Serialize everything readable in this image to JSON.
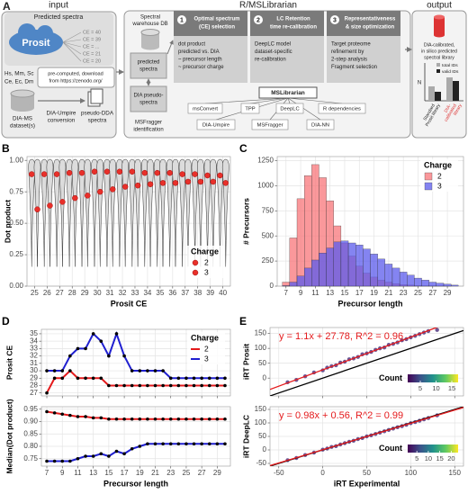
{
  "diagram": {
    "panel_label": "A",
    "input": {
      "title": "input",
      "predicted": "Predicted spectra",
      "prosit": "Prosit",
      "ce": [
        "CE = 40",
        "CE = 39",
        "CE = ...",
        "CE = 21",
        "CE = 20"
      ],
      "species": [
        "Hs, Mm, Sc",
        "Ce, Ec, Dm"
      ],
      "download": [
        "pre-computed, download",
        "from https://zenodo.org/"
      ],
      "dia": [
        "DIA-MS",
        "dataset(s)"
      ],
      "conversion": [
        "DIA-Umpire",
        "conversion"
      ],
      "pseudo": [
        "pseudo-DDA",
        "spectra"
      ]
    },
    "middle": {
      "title": "R/MSLibrarian",
      "warehouse": [
        "Spectral",
        "warehouse DB"
      ],
      "predicted_spectra": [
        "predicted",
        "spectra"
      ],
      "dia_pseudo": [
        "DIA pseudo-",
        "spectra"
      ],
      "msfragger": [
        "MSFragger",
        "identification"
      ],
      "steps": [
        {
          "number": "1",
          "title": [
            "Optimal spectrum",
            "(CE) selection"
          ],
          "text": [
            "dot product",
            "predicted vs. DIA",
            "~ precursor length",
            "~ precursor charge"
          ]
        },
        {
          "number": "2",
          "title": [
            "LC Retention",
            "time re-calibration"
          ],
          "text": [
            "DeepLC model",
            "dataset-specific",
            "re-calibration"
          ]
        },
        {
          "number": "3",
          "title": [
            "Representativeness",
            "& size optimization"
          ],
          "text": [
            "Target proteome",
            "refinement by",
            "2-step analysis",
            "Fragment selection"
          ]
        }
      ],
      "package": "MSLibrarian",
      "dependencies": [
        "msConvert",
        "TPP",
        "DeepLC",
        "R dependencies",
        "DIA-Umpire",
        "MSFragger",
        "DIA-NN"
      ]
    },
    "output": {
      "title": "output",
      "text": [
        "DIA-calibrated,",
        "in silico predicted",
        "spectral library"
      ],
      "axis": "N",
      "legend": [
        "total IDs",
        "valid IDs"
      ],
      "standard": [
        "Standard",
        "Prosit library"
      ],
      "calibrated": [
        "DIA-",
        "calibrated",
        "library"
      ]
    }
  },
  "chart_data": [
    {
      "type": "violin",
      "panel_label": "B",
      "xlabel": "Prosit CE",
      "ylabel": "Dot product",
      "x": [
        25,
        26,
        27,
        28,
        29,
        30,
        31,
        32,
        33,
        34,
        35,
        36,
        37,
        38,
        39,
        40
      ],
      "xlim": [
        24.4,
        40.6
      ],
      "xticks": [
        25,
        26,
        27,
        28,
        29,
        30,
        31,
        32,
        33,
        34,
        35,
        36,
        37,
        38,
        39,
        40
      ],
      "ylim": [
        0,
        1.03
      ],
      "yticks": [
        {
          "value": 0,
          "label": "0.00"
        },
        {
          "value": 0.25,
          "label": "0.25"
        },
        {
          "value": 0.5,
          "label": "0.50"
        },
        {
          "value": 0.75,
          "label": "0.75"
        },
        {
          "value": 1,
          "label": "1.00"
        }
      ],
      "grid": true,
      "legend": "bottom-right",
      "legend_title": "Charge",
      "series": [
        {
          "name": "2",
          "color": "#e8302a",
          "values": [
            0.89,
            0.89,
            0.89,
            0.9,
            0.9,
            0.91,
            0.91,
            0.91,
            0.91,
            0.9,
            0.9,
            0.9,
            0.89,
            0.89,
            0.88,
            0.88
          ]
        },
        {
          "name": "3",
          "color": "#e8302a",
          "values": [
            0.61,
            0.64,
            0.67,
            0.7,
            0.72,
            0.75,
            0.77,
            0.79,
            0.8,
            0.81,
            0.82,
            0.82,
            0.83,
            0.83,
            0.83,
            0.82
          ]
        }
      ]
    },
    {
      "type": "histogram",
      "panel_label": "C",
      "xlabel": "Precursor length",
      "ylabel": "# Precursors",
      "bins": [
        6.5,
        7.5,
        8.5,
        9.5,
        10.5,
        11.5,
        12.5,
        13.5,
        14.5,
        15.5,
        16.5,
        17.5,
        18.5,
        19.5,
        20.5,
        21.5,
        22.5,
        23.5,
        24.5,
        25.5,
        26.5,
        27.5,
        28.5,
        29.5,
        30.5
      ],
      "xlim": [
        5.8,
        31.2
      ],
      "xticks": [
        7,
        9,
        11,
        13,
        15,
        17,
        19,
        21,
        23,
        25,
        27,
        29
      ],
      "ylim": [
        0,
        1290
      ],
      "yticks": [
        0,
        250,
        500,
        750,
        1000,
        1250
      ],
      "grid": true,
      "opacity": 0.75,
      "legend": "top-right",
      "legend_title": "Charge",
      "series": [
        {
          "name": "2",
          "color": "#f8767a",
          "values": [
            40,
            480,
            870,
            1100,
            1210,
            1080,
            850,
            600,
            430,
            300,
            200,
            130,
            90,
            60,
            40,
            25,
            15,
            10,
            5,
            3,
            2,
            1,
            1,
            0
          ]
        },
        {
          "name": "3",
          "color": "#5b5bec",
          "values": [
            5,
            40,
            100,
            180,
            260,
            330,
            380,
            440,
            450,
            430,
            410,
            370,
            320,
            270,
            220,
            180,
            140,
            110,
            80,
            60,
            40,
            30,
            20,
            10
          ]
        }
      ]
    },
    {
      "type": "line",
      "panel_label": "D",
      "ylabel": "Prosit CE",
      "x": [
        7,
        8,
        9,
        10,
        11,
        12,
        13,
        14,
        15,
        16,
        17,
        18,
        19,
        20,
        21,
        22,
        23,
        24,
        25,
        26,
        27,
        28,
        29,
        30
      ],
      "xlim": [
        6.3,
        30.7
      ],
      "xticks": [
        7,
        9,
        11,
        13,
        15,
        17,
        19,
        21,
        23,
        25,
        27,
        29
      ],
      "xtick_labels": false,
      "ylim": [
        26.6,
        35.6
      ],
      "yticks": [
        27,
        28,
        29,
        30,
        31,
        32,
        33,
        34,
        35
      ],
      "grid": true,
      "point_color": "#000000",
      "legend": "top-right",
      "legend_title": "Charge",
      "series": [
        {
          "name": "2",
          "color": "#e41a1c",
          "values": [
            27,
            29,
            29,
            30,
            29,
            29,
            29,
            29,
            28,
            28,
            28,
            28,
            28,
            28,
            28,
            28,
            28,
            28,
            28,
            28,
            28,
            28,
            28,
            28
          ]
        },
        {
          "name": "3",
          "color": "#1f1fd0",
          "values": [
            30,
            30,
            30,
            32,
            33,
            33,
            35,
            34,
            32,
            35,
            32,
            30,
            30,
            30,
            30,
            30,
            29,
            29,
            29,
            29,
            29,
            29,
            29,
            29
          ]
        }
      ]
    },
    {
      "type": "line",
      "xlabel": "Precursor length",
      "ylabel": "Median(Dot product)",
      "x": [
        7,
        8,
        9,
        10,
        11,
        12,
        13,
        14,
        15,
        16,
        17,
        18,
        19,
        20,
        21,
        22,
        23,
        24,
        25,
        26,
        27,
        28,
        29,
        30
      ],
      "xlim": [
        6.3,
        30.7
      ],
      "xticks": [
        7,
        9,
        11,
        13,
        15,
        17,
        19,
        21,
        23,
        25,
        27,
        29
      ],
      "ylim": [
        0.72,
        0.96
      ],
      "yticks": [
        0.75,
        {
          "value": 0.8,
          "label": "0.80"
        },
        0.85,
        {
          "value": 0.9,
          "label": "0.90"
        },
        0.95
      ],
      "grid": true,
      "point_color": "#000000",
      "series": [
        {
          "name": "2",
          "color": "#e41a1c",
          "values": [
            0.94,
            0.935,
            0.93,
            0.925,
            0.92,
            0.92,
            0.915,
            0.915,
            0.91,
            0.91,
            0.91,
            0.91,
            0.91,
            0.91,
            0.91,
            0.91,
            0.91,
            0.91,
            0.91,
            0.91,
            0.91,
            0.91,
            0.91,
            0.91
          ]
        },
        {
          "name": "3",
          "color": "#1f1fd0",
          "values": [
            0.74,
            0.74,
            0.74,
            0.74,
            0.75,
            0.76,
            0.76,
            0.77,
            0.76,
            0.78,
            0.77,
            0.79,
            0.8,
            0.81,
            0.81,
            0.81,
            0.81,
            0.81,
            0.81,
            0.81,
            0.81,
            0.81,
            0.81,
            0.81
          ]
        }
      ]
    },
    {
      "type": "scatter",
      "panel_label": "E",
      "ylabel": "iRT Prosit",
      "x": [
        -40,
        -30,
        -20,
        -10,
        0,
        5,
        10,
        15,
        20,
        25,
        30,
        35,
        40,
        45,
        50,
        55,
        60,
        65,
        70,
        75,
        80,
        85,
        90,
        95,
        100,
        105,
        110,
        115,
        120,
        130
      ],
      "values": [
        -14,
        -6,
        6,
        19,
        26,
        35,
        40,
        43,
        52,
        55,
        63,
        66,
        71,
        80,
        83,
        88,
        95,
        100,
        103,
        112,
        115,
        120,
        127,
        131,
        137,
        142,
        148,
        153,
        158,
        162
      ],
      "color": "#472d7b",
      "xlim": [
        -60,
        160
      ],
      "xticks": [
        -50,
        0,
        50,
        100,
        150
      ],
      "xtick_labels": false,
      "ylim": [
        -60,
        170
      ],
      "yticks": [
        0,
        50,
        100,
        150
      ],
      "grid": true,
      "annotation": "y = 1.1x + 27.78, R^2 = 0.96",
      "fit": {
        "slope": 1.1,
        "intercept": 27.78,
        "color": "#e41a1c"
      },
      "identity_line": true,
      "colorbar": {
        "title": "Count",
        "lim": [
          1,
          17
        ],
        "ticks": [
          5,
          10,
          15
        ],
        "colors": [
          "#440154",
          "#3b528b",
          "#21918c",
          "#5ec962",
          "#fde725"
        ]
      }
    },
    {
      "type": "scatter",
      "xlabel": "iRT Experimental",
      "ylabel": "iRT DeepLC",
      "x": [
        -40,
        -30,
        -20,
        -10,
        0,
        5,
        10,
        15,
        20,
        25,
        30,
        35,
        40,
        45,
        50,
        55,
        60,
        65,
        70,
        75,
        80,
        85,
        90,
        95,
        100,
        105,
        110,
        115,
        120,
        130
      ],
      "values": [
        -38,
        -30,
        -19,
        -10,
        1,
        5,
        11,
        14,
        20,
        25,
        30,
        34,
        40,
        44,
        50,
        54,
        59,
        64,
        69,
        74,
        79,
        84,
        88,
        93,
        99,
        103,
        108,
        113,
        118,
        128
      ],
      "color": "#472d7b",
      "xlim": [
        -60,
        160
      ],
      "xticks": [
        -50,
        0,
        50,
        100,
        150
      ],
      "ylim": [
        -60,
        160
      ],
      "yticks": [
        -50,
        0,
        50,
        100,
        150
      ],
      "grid": true,
      "annotation": "y = 0.98x + 0.56, R^2 = 0.99",
      "fit": {
        "slope": 0.98,
        "intercept": 0.56,
        "color": "#e41a1c"
      },
      "identity_line": true,
      "colorbar": {
        "title": "Count",
        "lim": [
          1,
          23
        ],
        "ticks": [
          5,
          10,
          15,
          20
        ],
        "colors": [
          "#440154",
          "#3b528b",
          "#21918c",
          "#5ec962",
          "#fde725"
        ]
      }
    }
  ]
}
